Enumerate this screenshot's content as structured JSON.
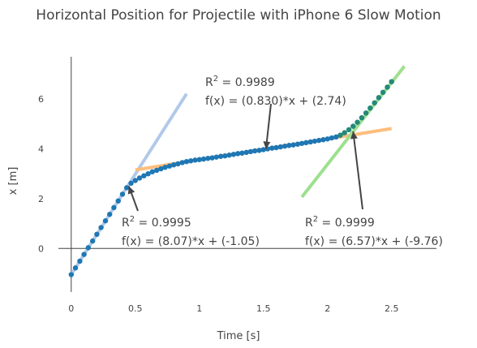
{
  "chart_data": {
    "type": "scatter",
    "title": "Horizontal Position for Projectile with iPhone 6 Slow Motion",
    "xlabel": "Time [s]",
    "ylabel": "x [m]",
    "xlim": [
      -0.1,
      2.85
    ],
    "ylim": [
      -1.75,
      7.7
    ],
    "x_ticks": [
      0,
      0.5,
      1,
      1.5,
      2,
      2.5
    ],
    "x_tick_labels": [
      "0",
      "0.5",
      "1",
      "1.5",
      "2",
      "2.5"
    ],
    "y_ticks": [
      0,
      2,
      4,
      6
    ],
    "y_tick_labels": [
      "0",
      "2",
      "4",
      "6"
    ],
    "grid": false,
    "legend": "none",
    "series": [
      {
        "marker_color": "#1f77b4",
        "overlay_color": "#2ca02c",
        "x": [
          0.0,
          0.033,
          0.067,
          0.1,
          0.133,
          0.167,
          0.2,
          0.233,
          0.267,
          0.3,
          0.333,
          0.367,
          0.4,
          0.433,
          0.467,
          0.5,
          0.533,
          0.567,
          0.6,
          0.633,
          0.667,
          0.7,
          0.733,
          0.767,
          0.8,
          0.833,
          0.867,
          0.9,
          0.933,
          0.967,
          1.0,
          1.033,
          1.067,
          1.1,
          1.133,
          1.167,
          1.2,
          1.233,
          1.267,
          1.3,
          1.333,
          1.367,
          1.4,
          1.433,
          1.467,
          1.5,
          1.533,
          1.567,
          1.6,
          1.633,
          1.667,
          1.7,
          1.733,
          1.767,
          1.8,
          1.833,
          1.867,
          1.9,
          1.933,
          1.967,
          2.0,
          2.033,
          2.067,
          2.1,
          2.133,
          2.167,
          2.2,
          2.233,
          2.267,
          2.3,
          2.333,
          2.367,
          2.4,
          2.433,
          2.467,
          2.5
        ],
        "y": [
          -1.05,
          -0.78,
          -0.51,
          -0.24,
          0.03,
          0.3,
          0.57,
          0.84,
          1.11,
          1.37,
          1.64,
          1.91,
          2.18,
          2.44,
          2.62,
          2.73,
          2.83,
          2.92,
          3.0,
          3.08,
          3.14,
          3.2,
          3.26,
          3.31,
          3.36,
          3.4,
          3.45,
          3.49,
          3.52,
          3.55,
          3.57,
          3.59,
          3.62,
          3.64,
          3.67,
          3.7,
          3.72,
          3.75,
          3.78,
          3.81,
          3.83,
          3.86,
          3.89,
          3.92,
          3.94,
          3.97,
          4.0,
          4.03,
          4.05,
          4.08,
          4.11,
          4.14,
          4.16,
          4.19,
          4.22,
          4.25,
          4.28,
          4.31,
          4.34,
          4.37,
          4.4,
          4.44,
          4.48,
          4.55,
          4.65,
          4.77,
          4.91,
          5.07,
          5.25,
          5.44,
          5.64,
          5.85,
          6.06,
          6.27,
          6.48,
          6.7
        ]
      }
    ],
    "fits": [
      {
        "color": "#aec7e8",
        "x_range": [
          0.0,
          0.9
        ],
        "slope": 8.07,
        "intercept": -1.05,
        "r2_prefix": "R",
        "r2_sup": "2",
        "r2_value": " = 0.9995",
        "equation": "f(x) = (8.07)*x + (-1.05)",
        "arrow_to": [
          0.45,
          2.5
        ]
      },
      {
        "color": "#ffbb78",
        "x_range": [
          0.5,
          2.5
        ],
        "slope": 0.83,
        "intercept": 2.74,
        "r2_prefix": "R",
        "r2_sup": "2",
        "r2_value": " = 0.9989",
        "equation": "f(x) = (0.830)*x + (2.74)",
        "arrow_to": [
          1.52,
          4.0
        ]
      },
      {
        "color": "#98df8a",
        "x_range": [
          1.8,
          2.6
        ],
        "slope": 6.57,
        "intercept": -9.76,
        "r2_prefix": "R",
        "r2_sup": "2",
        "r2_value": " = 0.9999",
        "equation": "f(x) = (6.57)*x + (-9.76)",
        "arrow_to": [
          2.2,
          4.7
        ]
      }
    ]
  }
}
